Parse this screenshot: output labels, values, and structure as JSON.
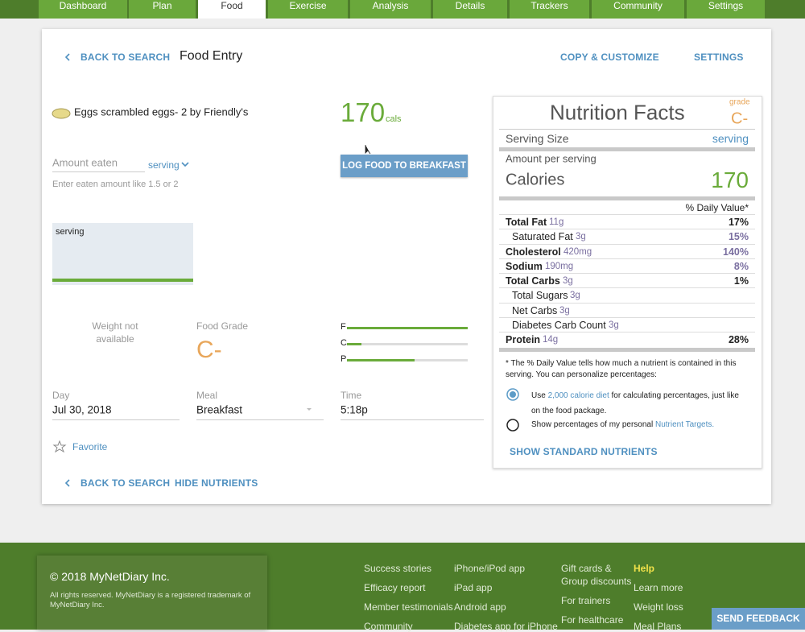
{
  "nav": [
    "Dashboard",
    "Plan",
    "Food",
    "Exercise",
    "Analysis",
    "Details",
    "Trackers",
    "Community",
    "Settings"
  ],
  "header": {
    "back": "BACK TO SEARCH",
    "title": "Food Entry",
    "copy": "COPY & CUSTOMIZE",
    "settings": "SETTINGS"
  },
  "food": {
    "name": "Eggs scrambled eggs- 2 by Friendly's",
    "calories": "170",
    "cal_unit": "cals",
    "amount_label": "Amount eaten",
    "unit": "serving",
    "hint": "Enter eaten amount like 1.5 or 2",
    "log_button": "LOG FOOD TO BREAKFAST",
    "portion_label": "serving",
    "weight": "Weight not available"
  },
  "grade": {
    "label": "Food Grade",
    "value": "C-"
  },
  "macros": [
    {
      "label": "F",
      "value": 100
    },
    {
      "label": "C",
      "value": 12
    },
    {
      "label": "P",
      "value": 56
    }
  ],
  "fields": [
    {
      "label": "Day",
      "value": "Jul 30, 2018"
    },
    {
      "label": "Meal",
      "value": "Breakfast"
    },
    {
      "label": "Time",
      "value": "5:18p"
    }
  ],
  "favorite": "Favorite",
  "bottom_links": {
    "back": "BACK TO SEARCH",
    "hide": "HIDE NUTRIENTS"
  },
  "nutrition": {
    "title": "Nutrition Facts",
    "grade_label": "grade",
    "grade": "C-",
    "serving_label": "Serving Size",
    "serving": "serving",
    "amount_per": "Amount per serving",
    "calories_label": "Calories",
    "calories": "170",
    "dv_header": "% Daily Value*",
    "rows": [
      {
        "name": "Total Fat",
        "amount": "11g",
        "dv": "17%",
        "bold": true,
        "indent": false,
        "highlight": false
      },
      {
        "name": "Saturated Fat",
        "amount": "3g",
        "dv": "15%",
        "bold": false,
        "indent": true,
        "highlight": true
      },
      {
        "name": "Cholesterol",
        "amount": "420mg",
        "dv": "140%",
        "bold": true,
        "indent": false,
        "highlight": true
      },
      {
        "name": "Sodium",
        "amount": "190mg",
        "dv": "8%",
        "bold": true,
        "indent": false,
        "highlight": true
      },
      {
        "name": "Total Carbs",
        "amount": "3g",
        "dv": "1%",
        "bold": true,
        "indent": false,
        "highlight": false
      },
      {
        "name": "Total Sugars",
        "amount": "3g",
        "dv": null,
        "bold": false,
        "indent": true,
        "highlight": false
      },
      {
        "name": "Net Carbs",
        "amount": "3g",
        "dv": null,
        "bold": false,
        "indent": true,
        "highlight": false
      },
      {
        "name": "Diabetes Carb Count",
        "amount": "3g",
        "dv": null,
        "bold": false,
        "indent": true,
        "highlight": false
      },
      {
        "name": "Protein",
        "amount": "14g",
        "dv": "28%",
        "bold": true,
        "indent": false,
        "highlight": false
      }
    ],
    "footnote": "* The % Daily Value tells how much a nutrient is contained in this serving. You can personalize percentages:",
    "option1": {
      "pre": "Use",
      "link": "2,000 calorie diet",
      "post": "for calculating percentages, just like on the food package."
    },
    "option2": {
      "pre": "Show percentages of my personal",
      "link": "Nutrient Targets."
    },
    "show_standard": "SHOW STANDARD NUTRIENTS"
  },
  "footer": {
    "copyright": "© 2018 MyNetDiary Inc.",
    "rights": "All rights reserved. MyNetDiary is a registered trademark of MyNetDiary Inc.",
    "columns": [
      [
        "Success stories",
        "Efficacy report",
        "Member testimonials",
        "Community"
      ],
      [
        "iPhone/iPod app",
        "iPad app",
        "Android app",
        "Diabetes app for iPhone"
      ],
      [
        "Gift cards & Group discounts",
        "For trainers",
        "For healthcare"
      ],
      [
        "Help",
        "Learn more",
        "Weight loss",
        "Meal Plans"
      ]
    ]
  },
  "feedback": "SEND FEEDBACK"
}
